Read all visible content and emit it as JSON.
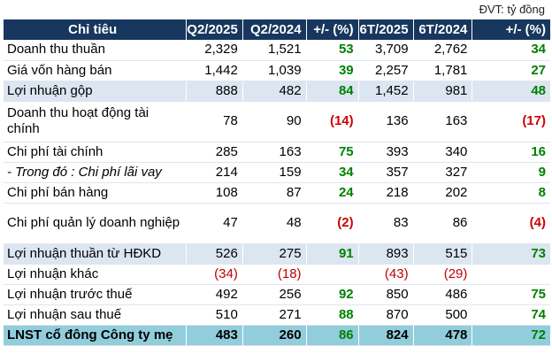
{
  "unit_label": "ĐVT: tỷ đồng",
  "headers": [
    "Chỉ tiêu",
    "Q2/2025",
    "Q2/2024",
    "+/- (%)",
    "6T/2025",
    "6T/2024",
    "+/- (%)"
  ],
  "rows": [
    {
      "label": "Doanh thu thuần",
      "q2_2025": "2,329",
      "q2_2024": "1,521",
      "q_change": "53",
      "h1_2025": "3,709",
      "h1_2024": "2,762",
      "h_change": "34"
    },
    {
      "label": "Giá vốn hàng bán",
      "q2_2025": "1,442",
      "q2_2024": "1,039",
      "q_change": "39",
      "h1_2025": "2,257",
      "h1_2024": "1,781",
      "h_change": "27"
    },
    {
      "label": "Lợi nhuận gộp",
      "q2_2025": "888",
      "q2_2024": "482",
      "q_change": "84",
      "h1_2025": "1,452",
      "h1_2024": "981",
      "h_change": "48"
    },
    {
      "label": "Doanh thu hoạt động tài chính",
      "q2_2025": "78",
      "q2_2024": "90",
      "q_change": "(14)",
      "h1_2025": "136",
      "h1_2024": "163",
      "h_change": "(17)"
    },
    {
      "label": "Chi phí tài chính",
      "q2_2025": "285",
      "q2_2024": "163",
      "q_change": "75",
      "h1_2025": "393",
      "h1_2024": "340",
      "h_change": "16"
    },
    {
      "label": "- Trong đó : Chi phí lãi vay",
      "q2_2025": "214",
      "q2_2024": "159",
      "q_change": "34",
      "h1_2025": "357",
      "h1_2024": "327",
      "h_change": "9"
    },
    {
      "label": "Chi phí bán hàng",
      "q2_2025": "108",
      "q2_2024": "87",
      "q_change": "24",
      "h1_2025": "218",
      "h1_2024": "202",
      "h_change": "8"
    },
    {
      "label": "Chi phí quản lý doanh nghiệp",
      "q2_2025": "47",
      "q2_2024": "48",
      "q_change": "(2)",
      "h1_2025": "83",
      "h1_2024": "86",
      "h_change": "(4)"
    },
    {
      "label": "Lợi nhuận thuần từ HĐKD",
      "q2_2025": "526",
      "q2_2024": "275",
      "q_change": "91",
      "h1_2025": "893",
      "h1_2024": "515",
      "h_change": "73"
    },
    {
      "label": "Lợi nhuận khác",
      "q2_2025": "(34)",
      "q2_2024": "(18)",
      "q_change": "",
      "h1_2025": "(43)",
      "h1_2024": "(29)",
      "h_change": ""
    },
    {
      "label": "Lợi nhuận trước thuế",
      "q2_2025": "492",
      "q2_2024": "256",
      "q_change": "92",
      "h1_2025": "850",
      "h1_2024": "486",
      "h_change": "75"
    },
    {
      "label": "Lợi nhuận sau thuế",
      "q2_2025": "510",
      "q2_2024": "271",
      "q_change": "88",
      "h1_2025": "870",
      "h1_2024": "500",
      "h_change": "74"
    },
    {
      "label": "LNST cổ đông Công ty mẹ",
      "q2_2025": "483",
      "q2_2024": "260",
      "q_change": "86",
      "h1_2025": "824",
      "h1_2024": "478",
      "h_change": "72"
    }
  ],
  "colors": {
    "header_bg": "#17375e",
    "highlight_bg": "#dce6f1",
    "total_bg": "#92cddc",
    "positive": "#008000",
    "negative": "#d00000"
  }
}
